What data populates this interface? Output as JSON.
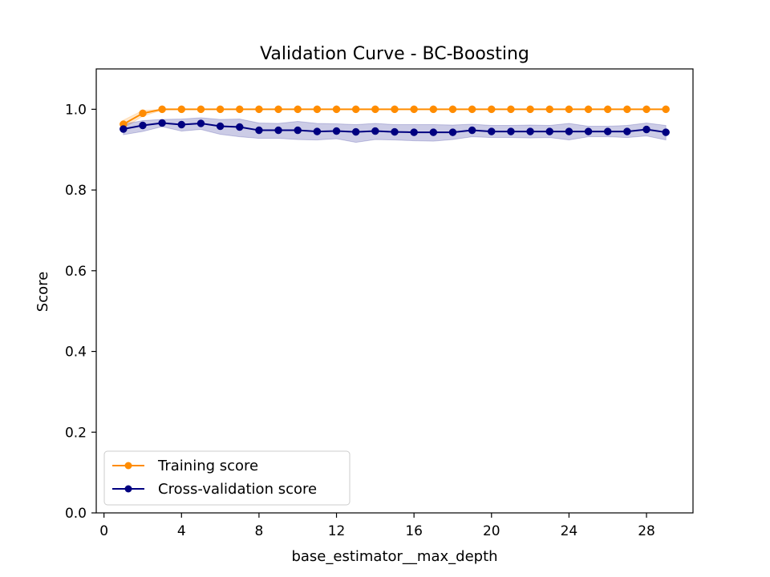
{
  "chart_data": {
    "type": "line",
    "title": "Validation Curve - BC-Boosting",
    "xlabel": "base_estimator__max_depth",
    "ylabel": "Score",
    "xlim": [
      -0.4,
      30.4
    ],
    "ylim": [
      0.0,
      1.1
    ],
    "xticks": [
      0,
      4,
      8,
      12,
      16,
      20,
      24,
      28
    ],
    "yticks": [
      0.0,
      0.2,
      0.4,
      0.6,
      0.8,
      1.0
    ],
    "xtick_labels": [
      "0",
      "4",
      "8",
      "12",
      "16",
      "20",
      "24",
      "28"
    ],
    "ytick_labels": [
      "0.0",
      "0.2",
      "0.4",
      "0.6",
      "0.8",
      "1.0"
    ],
    "grid": false,
    "legend_position": "lower-left",
    "x": [
      1,
      2,
      3,
      4,
      5,
      6,
      7,
      8,
      9,
      10,
      11,
      12,
      13,
      14,
      15,
      16,
      17,
      18,
      19,
      20,
      21,
      22,
      23,
      24,
      25,
      26,
      27,
      28,
      29
    ],
    "series": [
      {
        "name": "Training score",
        "color": "#ff8c00",
        "values": [
          0.963,
          0.99,
          1.0,
          1.0,
          1.0,
          1.0,
          1.0,
          1.0,
          1.0,
          1.0,
          1.0,
          1.0,
          1.0,
          1.0,
          1.0,
          1.0,
          1.0,
          1.0,
          1.0,
          1.0,
          1.0,
          1.0,
          1.0,
          1.0,
          1.0,
          1.0,
          1.0,
          1.0,
          1.0
        ],
        "band_lower": [
          0.953,
          0.983,
          0.998,
          1.0,
          1.0,
          1.0,
          1.0,
          1.0,
          1.0,
          1.0,
          1.0,
          1.0,
          1.0,
          1.0,
          1.0,
          1.0,
          1.0,
          1.0,
          1.0,
          1.0,
          1.0,
          1.0,
          1.0,
          1.0,
          1.0,
          1.0,
          1.0,
          1.0,
          1.0
        ],
        "band_upper": [
          0.973,
          0.997,
          1.0,
          1.0,
          1.0,
          1.0,
          1.0,
          1.0,
          1.0,
          1.0,
          1.0,
          1.0,
          1.0,
          1.0,
          1.0,
          1.0,
          1.0,
          1.0,
          1.0,
          1.0,
          1.0,
          1.0,
          1.0,
          1.0,
          1.0,
          1.0,
          1.0,
          1.0,
          1.0
        ]
      },
      {
        "name": "Cross-validation score",
        "color": "#000080",
        "values": [
          0.951,
          0.96,
          0.966,
          0.962,
          0.965,
          0.958,
          0.956,
          0.948,
          0.948,
          0.948,
          0.945,
          0.946,
          0.944,
          0.946,
          0.944,
          0.943,
          0.943,
          0.943,
          0.948,
          0.945,
          0.945,
          0.945,
          0.945,
          0.945,
          0.945,
          0.945,
          0.945,
          0.95,
          0.943
        ],
        "band_lower": [
          0.937,
          0.945,
          0.957,
          0.946,
          0.95,
          0.938,
          0.932,
          0.928,
          0.928,
          0.925,
          0.924,
          0.927,
          0.918,
          0.925,
          0.924,
          0.922,
          0.921,
          0.925,
          0.932,
          0.93,
          0.93,
          0.929,
          0.93,
          0.924,
          0.932,
          0.932,
          0.93,
          0.934,
          0.924
        ],
        "band_upper": [
          0.963,
          0.972,
          0.975,
          0.976,
          0.979,
          0.975,
          0.976,
          0.966,
          0.965,
          0.97,
          0.965,
          0.964,
          0.962,
          0.965,
          0.962,
          0.962,
          0.962,
          0.961,
          0.963,
          0.96,
          0.96,
          0.961,
          0.96,
          0.965,
          0.958,
          0.958,
          0.96,
          0.966,
          0.96
        ]
      }
    ]
  }
}
